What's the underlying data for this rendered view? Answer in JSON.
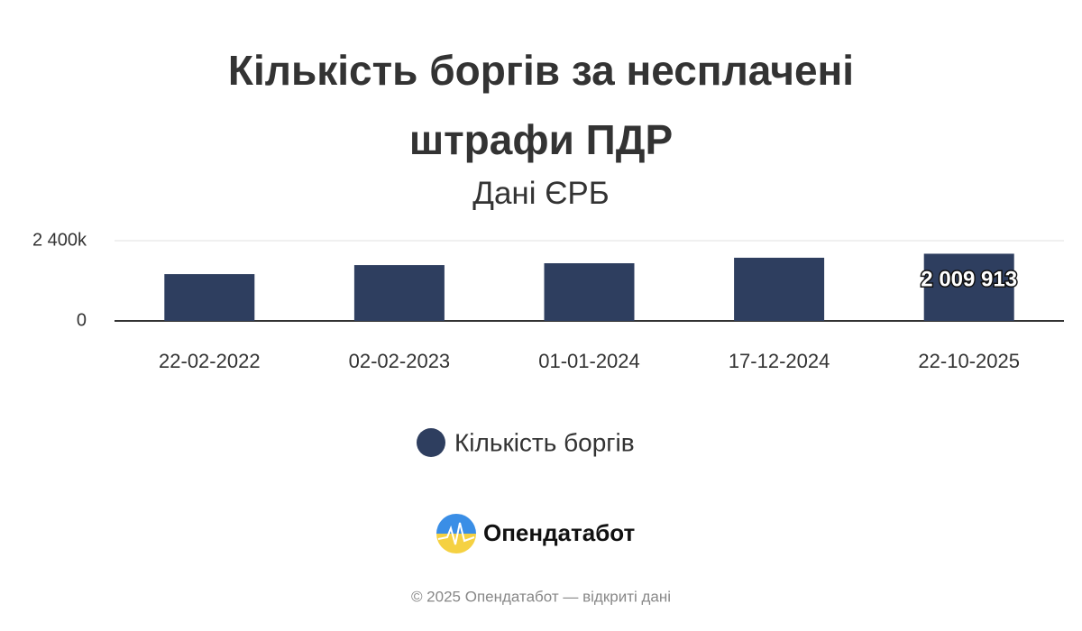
{
  "chart_data": {
    "type": "bar",
    "title": "Кількість боргів за несплачені штрафи ПДР",
    "subtitle": "Дані ЄРБ",
    "categories": [
      "22-02-2022",
      "02-02-2023",
      "01-01-2024",
      "17-12-2024",
      "22-10-2025"
    ],
    "series": [
      {
        "name": "Кількість боргів",
        "color": "#2e3e5f",
        "values": [
          1400000,
          1670000,
          1725000,
          1890000,
          2009913
        ],
        "value_labels": [
          null,
          null,
          null,
          null,
          "2 009 913"
        ]
      }
    ],
    "ylim": [
      0,
      2400000
    ],
    "yticks": [
      0,
      {
        "value": 2400000,
        "label": "2 400k"
      }
    ],
    "grid": true
  },
  "brand": "Опендатабот",
  "footer": "© 2025 Опендатабот — відкриті дані"
}
